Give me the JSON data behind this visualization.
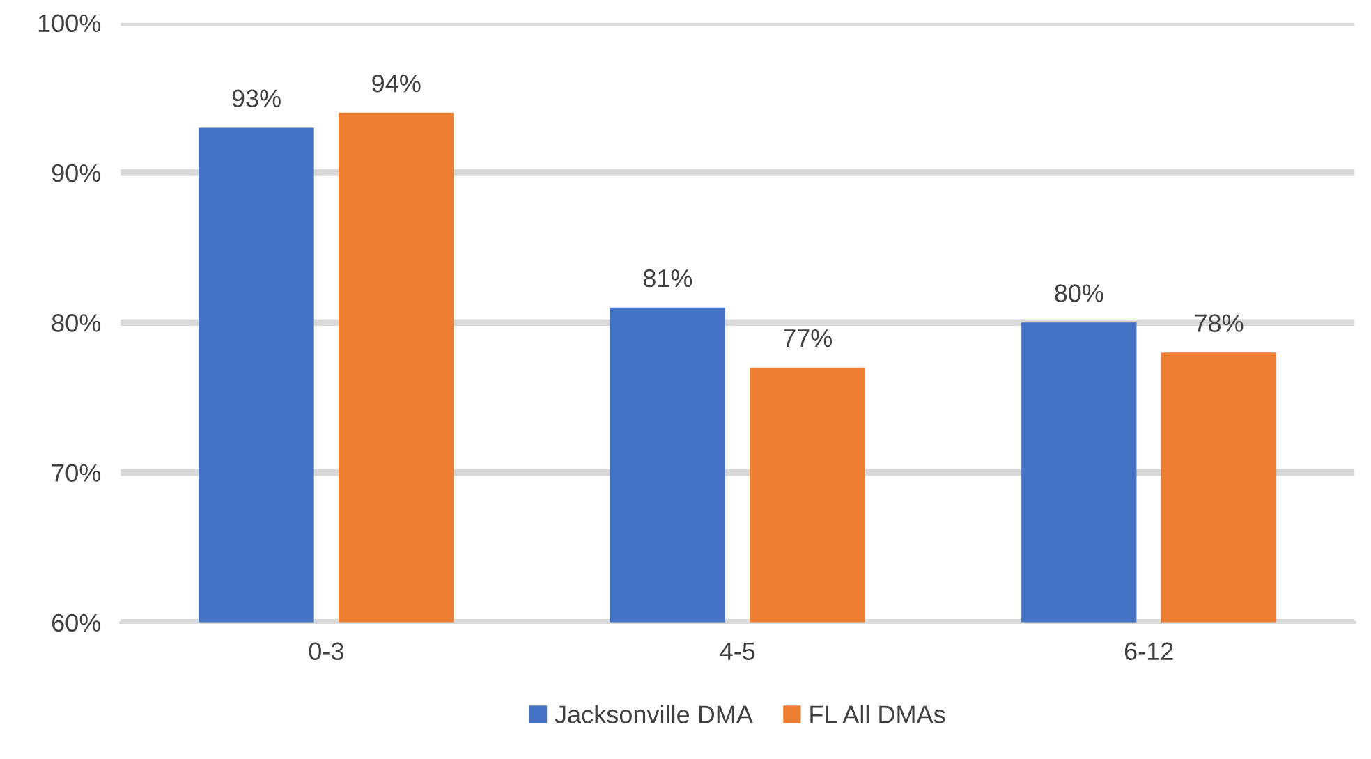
{
  "chart_data": {
    "type": "bar",
    "categories": [
      "0-3",
      "4-5",
      "6-12"
    ],
    "series": [
      {
        "name": "Jacksonville DMA",
        "color": "#4472c4",
        "values": [
          93,
          81,
          80
        ],
        "value_labels": [
          "93%",
          "81%",
          "80%"
        ]
      },
      {
        "name": "FL All DMAs",
        "color": "#ed7d31",
        "values": [
          94,
          77,
          78
        ],
        "value_labels": [
          "94%",
          "77%",
          "78%"
        ]
      }
    ],
    "ylim": [
      60,
      100
    ],
    "yticks": [
      {
        "value": 60,
        "label": "60%"
      },
      {
        "value": 70,
        "label": "70%"
      },
      {
        "value": 80,
        "label": "80%"
      },
      {
        "value": 90,
        "label": "90%"
      },
      {
        "value": 100,
        "label": "100%"
      }
    ],
    "grid": "y",
    "legend": "bottom"
  }
}
